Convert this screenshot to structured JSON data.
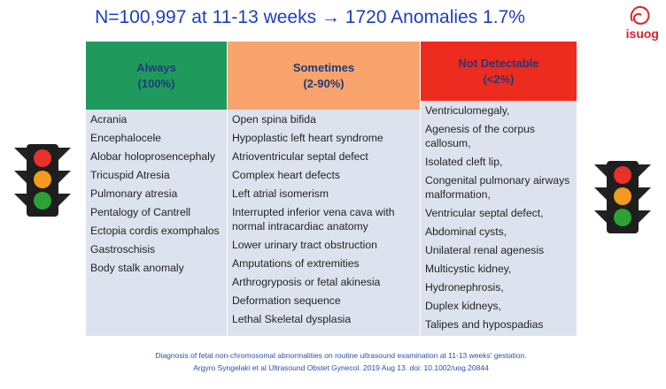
{
  "title": "N=100,997 at 11-13 weeks → 1720 Anomalies 1.7%",
  "logo": "isuog",
  "table": {
    "columns": [
      {
        "heading": "Always",
        "range": "(100%)",
        "items": [
          "Acrania",
          "Encephalocele",
          "Alobar holoprosencephaly",
          "Tricuspid Atresia",
          "Pulmonary atresia",
          "Pentalogy of Cantrell",
          "Ectopia cordis exomphalos",
          "Gastroschisis",
          "Body stalk anomaly"
        ]
      },
      {
        "heading": "Sometimes",
        "range": "(2-90%)",
        "items": [
          "Open spina bifida",
          "Hypoplastic left heart syndrome",
          "Atrioventricular septal defect",
          "Complex heart defects",
          "Left atrial isomerism",
          "Interrupted inferior vena cava with normal intracardiac anatomy",
          "Lower urinary tract obstruction",
          "Amputations of extremities",
          "Arthrogryposis or fetal akinesia",
          "Deformation sequence",
          "Lethal Skeletal dysplasia"
        ]
      },
      {
        "heading": "Not Detectable",
        "range": "(<2%)",
        "items": [
          "Ventriculomegaly,",
          "Agenesis of the corpus callosum,",
          "Isolated cleft lip,",
          "Congenital pulmonary airways malformation,",
          "Ventricular septal defect,",
          "Abdominal cysts,",
          "Unilateral renal agenesis",
          "Multicystic kidney,",
          "Hydronephrosis,",
          "Duplex kidneys,",
          "Talipes and hypospadias"
        ]
      }
    ]
  },
  "citation": [
    "Diagnosis of fetal non-chromosomal abnormalities on routine ultrasound examination at 11-13 weeks' gestation.",
    "Argyro Syngelaki et al  Ultrasound Obstet Gynecol. 2019 Aug 13. doi: 10.1002/uog.20844"
  ]
}
